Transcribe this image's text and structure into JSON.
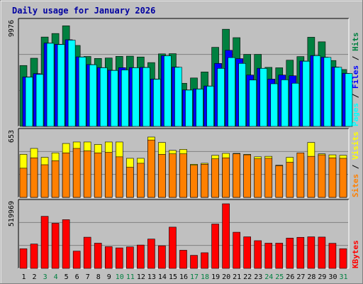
{
  "chart_data": {
    "type": "bar",
    "title": "Daily usage for January 2026",
    "categories": [
      "1",
      "2",
      "3",
      "4",
      "5",
      "6",
      "7",
      "8",
      "9",
      "10",
      "11",
      "12",
      "13",
      "14",
      "15",
      "16",
      "17",
      "18",
      "19",
      "20",
      "21",
      "22",
      "23",
      "24",
      "25",
      "26",
      "27",
      "28",
      "29",
      "30",
      "31"
    ],
    "weekend_days": [
      "3",
      "4",
      "10",
      "11",
      "17",
      "18",
      "24",
      "25",
      "31"
    ],
    "panels": [
      {
        "name": "hits-files-pages",
        "ymax_label": "9976",
        "ylim": [
          0,
          9976
        ],
        "legend": [
          "Pages",
          "Files",
          "Hits"
        ],
        "series": [
          {
            "name": "Hits",
            "color": "#008040",
            "values": [
              5860,
              6560,
              8600,
              8940,
              9680,
              7790,
              6730,
              6540,
              6580,
              6740,
              6760,
              6680,
              6140,
              6980,
              7000,
              4150,
              4660,
              5240,
              7610,
              9350,
              8540,
              6930,
              6930,
              5680,
              5640,
              6370,
              6720,
              8580,
              8140,
              6340,
              5470
            ]
          },
          {
            "name": "Files",
            "color": "#0000ff",
            "values": [
              4760,
              5080,
              8020,
              7900,
              8340,
              6690,
              5950,
              5660,
              5400,
              5650,
              5660,
              5680,
              4560,
              6800,
              5710,
              3510,
              3610,
              3890,
              6060,
              7320,
              6520,
              4940,
              5590,
              4550,
              4940,
              4870,
              6290,
              6820,
              6660,
              5710,
              5110
            ]
          },
          {
            "name": "Pages",
            "color": "#00ffff",
            "values": [
              4740,
              5000,
              8000,
              7880,
              8300,
              6670,
              5930,
              5640,
              5380,
              5430,
              5640,
              5660,
              4540,
              6790,
              5690,
              3490,
              3590,
              3870,
              5580,
              6620,
              6060,
              4460,
              5580,
              4100,
              4480,
              4150,
              6270,
              6800,
              6640,
              5690,
              5090
            ]
          }
        ]
      },
      {
        "name": "visits-sites",
        "ymax_label": "653",
        "ylim": [
          0,
          653
        ],
        "legend": [
          "Sites",
          "Visits"
        ],
        "series": [
          {
            "name": "Visits",
            "color": "#ffff00",
            "values": [
              435,
              495,
              405,
              450,
              545,
              560,
              560,
              535,
              560,
              560,
              395,
              395,
              610,
              555,
              475,
              485,
              335,
              345,
              425,
              445,
              445,
              435,
              410,
              415,
              325,
              405,
              415,
              555,
              440,
              430,
              425
            ]
          },
          {
            "name": "Sites",
            "color": "#ff8000",
            "values": [
              295,
              400,
              330,
              370,
              450,
              495,
              470,
              450,
              455,
              410,
              305,
              345,
              580,
              435,
              440,
              440,
              325,
              335,
              390,
              400,
              440,
              430,
              390,
              395,
              320,
              355,
              450,
              415,
              430,
              400,
              395
            ]
          }
        ]
      },
      {
        "name": "kbytes",
        "ymax_label": "519969",
        "ylim": [
          0,
          519969
        ],
        "legend": [
          "KBytes"
        ],
        "series": [
          {
            "name": "KBytes",
            "color": "#ff0000",
            "values": [
              158000,
              196000,
              419000,
              363000,
              392000,
              139000,
              251000,
              203000,
              175000,
              165000,
              173000,
              188000,
              236000,
              182000,
              332000,
              146000,
              105000,
              126000,
              357000,
              519969,
              291000,
              254000,
              223000,
              203000,
              203000,
              244000,
              250000,
              254000,
              252000,
              202000,
              158000
            ]
          }
        ]
      }
    ]
  }
}
